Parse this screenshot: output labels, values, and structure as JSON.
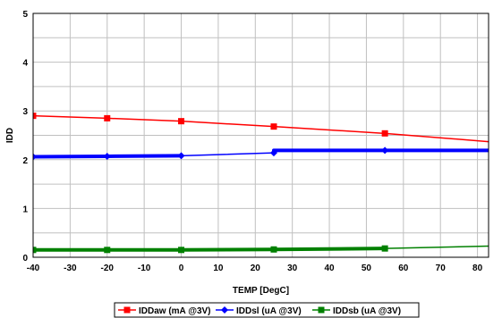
{
  "chart_data": {
    "type": "line",
    "xlabel": "TEMP [DegC]",
    "ylabel": "IDD",
    "xlim": [
      -40,
      83
    ],
    "ylim": [
      0,
      5
    ],
    "x_ticks": [
      -40,
      -30,
      -20,
      -10,
      0,
      10,
      20,
      30,
      40,
      50,
      60,
      70,
      80
    ],
    "y_ticks": [
      0,
      1,
      2,
      3,
      4,
      5
    ],
    "grid": true,
    "legend_position": "bottom",
    "series": [
      {
        "name": "IDDaw (mA @3V)",
        "color": "#ff0000",
        "marker": "square",
        "x": [
          -40,
          -20,
          0,
          25,
          55,
          83
        ],
        "y": [
          2.9,
          2.85,
          2.79,
          2.68,
          2.54,
          2.37
        ],
        "marker_points": [
          0,
          1,
          2,
          3,
          4
        ]
      },
      {
        "name": "IDDsl (uA @3V)",
        "color": "#0000ff",
        "marker": "diamond",
        "x": [
          -40,
          -20,
          0,
          25,
          25,
          55,
          83
        ],
        "y": [
          2.06,
          2.07,
          2.08,
          2.14,
          2.19,
          2.19,
          2.19
        ],
        "marker_points": [
          0,
          1,
          2,
          3,
          5
        ]
      },
      {
        "name": "IDDsb (uA @3V)",
        "color": "#008000",
        "marker": "square",
        "x": [
          -40,
          -20,
          0,
          25,
          55,
          83
        ],
        "y": [
          0.15,
          0.15,
          0.15,
          0.16,
          0.18,
          0.23
        ],
        "marker_points": [
          0,
          1,
          2,
          3,
          4
        ]
      }
    ]
  }
}
